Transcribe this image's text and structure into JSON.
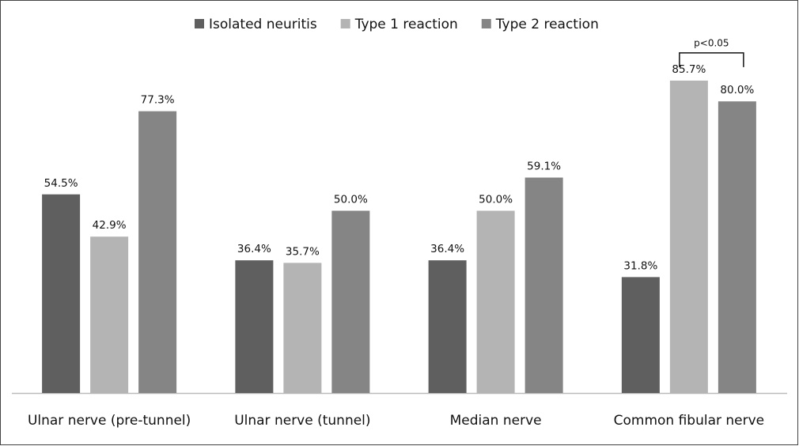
{
  "chart_data": {
    "type": "bar",
    "categories": [
      "Ulnar nerve (pre-tunnel)",
      "Ulnar nerve (tunnel)",
      "Median nerve",
      "Common fibular nerve"
    ],
    "series": [
      {
        "name": "Isolated neuritis",
        "color": "#5f5f5f",
        "values": [
          54.5,
          36.4,
          36.4,
          31.8
        ],
        "value_labels": [
          "54.5%",
          "36.4%",
          "36.4%",
          "31.8%"
        ]
      },
      {
        "name": "Type 1 reaction",
        "color": "#b4b4b4",
        "values": [
          42.9,
          35.7,
          50.0,
          85.7
        ],
        "value_labels": [
          "42.9%",
          "35.7%",
          "50.0%",
          "85.7%"
        ]
      },
      {
        "name": "Type 2 reaction",
        "color": "#858585",
        "values": [
          77.3,
          50.0,
          59.1,
          80.0
        ],
        "value_labels": [
          "77.3%",
          "50.0%",
          "59.1%",
          "80.0%"
        ]
      }
    ],
    "annotations": [
      {
        "text": "p<0.05",
        "category": 3,
        "series": [
          1,
          2
        ]
      }
    ],
    "legend": "top"
  }
}
